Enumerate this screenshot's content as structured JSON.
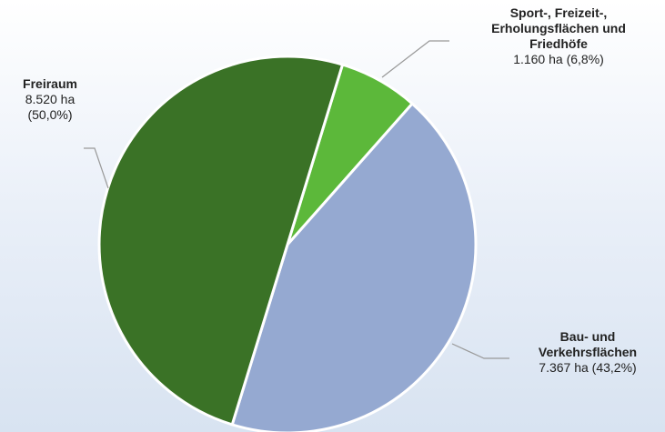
{
  "chart_data": {
    "type": "pie",
    "categories": [
      "Sport-, Freizeit-, Erholungsflächen und Friedhöfe",
      "Bau- und Verkehrsflächen",
      "Freiraum"
    ],
    "values": [
      1160,
      7367,
      8520
    ],
    "value_labels": [
      "1.160 ha (6,8%)",
      "7.367 ha (43,2%)",
      "8.520 ha (50,0%)"
    ],
    "colors": [
      "#5cb83a",
      "#95a9d1",
      "#3a7226"
    ]
  }
}
